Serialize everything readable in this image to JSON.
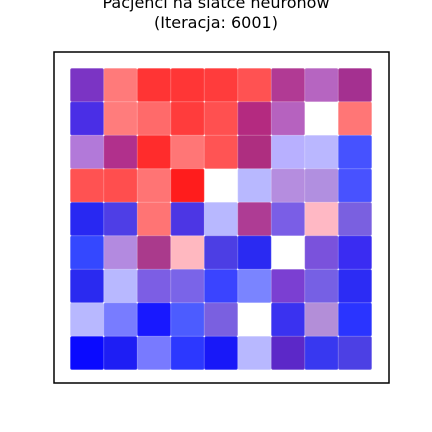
{
  "chart_data": {
    "type": "heatmap",
    "title_line1": "Pacjenci na siatce neuronów",
    "title_line2": "(Iteracja: 6001)",
    "rows": 9,
    "cols": 9,
    "grid": false,
    "empty_color": "#ffffff",
    "cells": [
      [
        "#7b34c4",
        "#ff7a7a",
        "#ff3434",
        "#ff3636",
        "#ff3c3c",
        "#ff5252",
        "#b13a94",
        "#b665c1",
        "#a43090"
      ],
      [
        "#4a2ee6",
        "#ff7c7c",
        "#ff6a6a",
        "#ff3c3c",
        "#ff5050",
        "#b42a80",
        "#b662bf",
        "#ffffff",
        "#ff7676"
      ],
      [
        "#b279d9",
        "#b1308c",
        "#ff2c2c",
        "#ff7676",
        "#ff5454",
        "#ae2e80",
        "#b8b0ff",
        "#bab7ff",
        "#4652ff"
      ],
      [
        "#ff5252",
        "#ff4e4e",
        "#ff7474",
        "#ff1c1c",
        "#ffffff",
        "#b8b8ff",
        "#b58ddf",
        "#b18fe0",
        "#4852ff"
      ],
      [
        "#2828f2",
        "#4e3ee6",
        "#ff7474",
        "#4c36e4",
        "#b8b8ff",
        "#ae3c94",
        "#7a5ee6",
        "#ffb8c4",
        "#7a60e0"
      ],
      [
        "#3448ff",
        "#b38ae0",
        "#aa3a8c",
        "#ffb8c0",
        "#4c3ee4",
        "#2a2af2",
        "#ffffff",
        "#7a52dc",
        "#3a2cf2"
      ],
      [
        "#2a2af0",
        "#b8b8ff",
        "#7c5ee4",
        "#7a64e8",
        "#3a44ff",
        "#7a84ff",
        "#7b3fd2",
        "#7660e4",
        "#2c2cf4"
      ],
      [
        "#b8b8ff",
        "#787cff",
        "#1818ff",
        "#4c5cff",
        "#7a60e0",
        "#ffffff",
        "#3a32f0",
        "#b38ed8",
        "#2a34ff"
      ],
      [
        "#0a0aff",
        "#1e1ef4",
        "#787aff",
        "#2c38ff",
        "#1818f8",
        "#b8b8ff",
        "#5c28c8",
        "#3838f0",
        "#4c40e4"
      ]
    ]
  }
}
